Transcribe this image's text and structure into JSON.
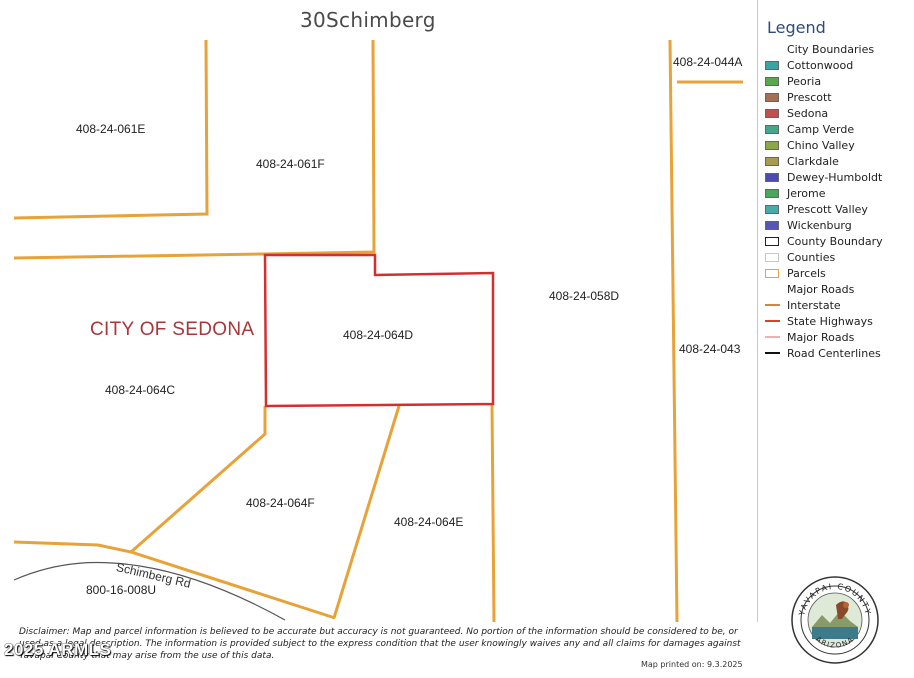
{
  "map": {
    "title": "30Schimberg",
    "city_label": "CITY OF SEDONA",
    "road_label": "Schimberg Rd",
    "parcel_labels": [
      "408-24-061E",
      "408-24-061F",
      "408-24-044A",
      "408-24-058D",
      "408-24-064D",
      "408-24-043",
      "408-24-064C",
      "408-24-064F",
      "408-24-064E",
      "800-16-008U"
    ],
    "colors": {
      "parcel_line": "#e8a238",
      "subject_parcel": "#d32f2f",
      "road": "#555555"
    }
  },
  "legend": {
    "title": "Legend",
    "items": [
      {
        "label": "City Boundaries",
        "kind": "none",
        "color": ""
      },
      {
        "label": "Cottonwood",
        "kind": "fill",
        "color": "#3aa3a3"
      },
      {
        "label": "Peoria",
        "kind": "fill",
        "color": "#5aa84e"
      },
      {
        "label": "Prescott",
        "kind": "fill",
        "color": "#a47152"
      },
      {
        "label": "Sedona",
        "kind": "fill",
        "color": "#c05050"
      },
      {
        "label": "Camp Verde",
        "kind": "fill",
        "color": "#47a58a"
      },
      {
        "label": "Chino Valley",
        "kind": "fill",
        "color": "#8aa84a"
      },
      {
        "label": "Clarkdale",
        "kind": "fill",
        "color": "#a89a52"
      },
      {
        "label": "Dewey-Humboldt",
        "kind": "fill",
        "color": "#4c4cb0"
      },
      {
        "label": "Jerome",
        "kind": "fill",
        "color": "#4aa65a"
      },
      {
        "label": "Prescott Valley",
        "kind": "fill",
        "color": "#4aaaa8"
      },
      {
        "label": "Wickenburg",
        "kind": "fill",
        "color": "#5656b4"
      },
      {
        "label": "County Boundary",
        "kind": "outline",
        "color": "#222222"
      },
      {
        "label": "Counties",
        "kind": "outline",
        "color": "#c8c8c8"
      },
      {
        "label": "Parcels",
        "kind": "outline",
        "color": "#e8a238"
      },
      {
        "label": "Major Roads",
        "kind": "none",
        "color": ""
      },
      {
        "label": "Interstate",
        "kind": "line",
        "color": "#e08040"
      },
      {
        "label": "State Highways",
        "kind": "line",
        "color": "#e04020"
      },
      {
        "label": "Major Roads",
        "kind": "line",
        "color": "#f0b0b0"
      },
      {
        "label": "Road Centerlines",
        "kind": "line",
        "color": "#111111"
      }
    ]
  },
  "footer": {
    "disclaimer": "Disclaimer: Map and parcel information is believed to be accurate but accuracy is not guaranteed. No portion of the information should be considered to be, or used as a legal description. The information is provided subject to the express condition that the user knowingly waives any and all claims for damages against Yavapai County that may arise from the use of this data.",
    "printed": "Map printed on: 9.3.2025",
    "watermark": "2025 ARMLS",
    "seal_text_top": "YAVAPAI COUNTY",
    "seal_text_bottom": "ARIZONA"
  }
}
